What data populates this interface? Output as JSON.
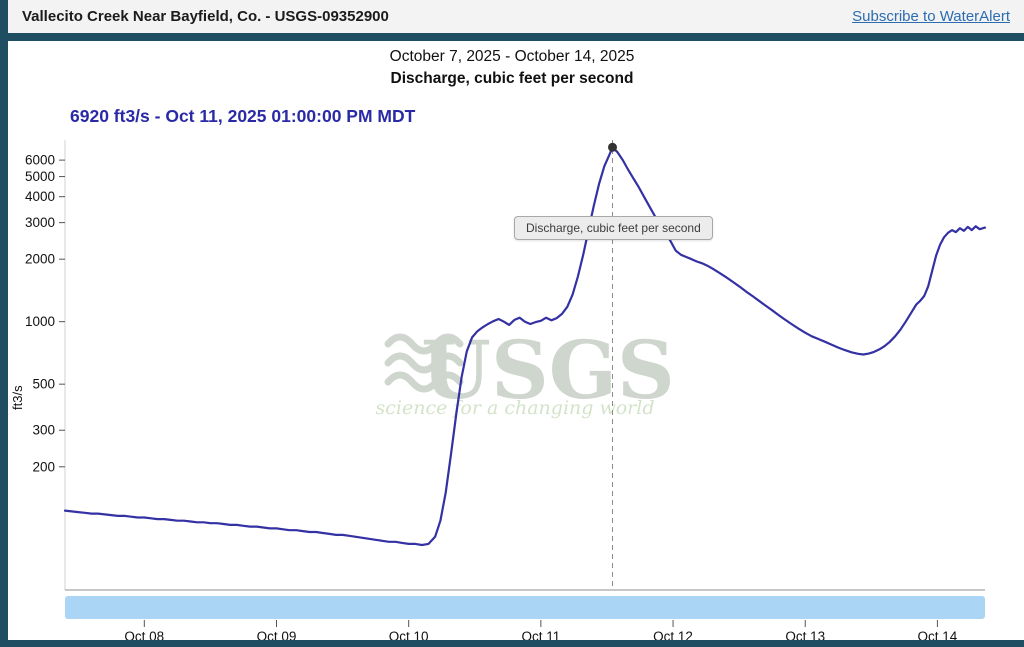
{
  "header": {
    "title": "Vallecito Creek Near Bayfield, Co. - USGS-09352900",
    "subscribe_link": "Subscribe to WaterAlert"
  },
  "chart": {
    "date_range_title": "October 7, 2025 - October 14, 2025",
    "parameter_title": "Discharge, cubic feet per second",
    "current_value_label": "6920 ft3/s - Oct 11, 2025 01:00:00 PM MDT",
    "tooltip": "Discharge, cubic feet per second",
    "watermark": {
      "text": "USGS",
      "tagline": "science for a changing world"
    }
  },
  "colors": {
    "frame": "#1f4e62",
    "header_bg": "#f3f3f3",
    "link": "#2c6cb0",
    "value_label": "#2b2aa6",
    "line": "#3431a4",
    "scrollbar": "#abd5f5",
    "watermark": "#c9d2c8"
  },
  "chart_data": {
    "type": "line",
    "title": "Discharge, cubic feet per second",
    "xlabel": "",
    "ylabel": "ft3/s",
    "y_scale": "log",
    "grid": false,
    "legend_position": "none",
    "y_ticks": [
      200,
      300,
      500,
      1000,
      2000,
      3000,
      4000,
      5000,
      6000
    ],
    "x_ticks": [
      {
        "day": 8,
        "label": "Oct 08"
      },
      {
        "day": 9,
        "label": "Oct 09"
      },
      {
        "day": 10,
        "label": "Oct 10"
      },
      {
        "day": 11,
        "label": "Oct 11"
      },
      {
        "day": 12,
        "label": "Oct 12"
      },
      {
        "day": 13,
        "label": "Oct 13"
      },
      {
        "day": 14,
        "label": "Oct 14"
      }
    ],
    "x_range_days": [
      7.4,
      14.36
    ],
    "y_range": [
      51,
      7500
    ],
    "peak": {
      "x": 11.542,
      "value": 6920,
      "datetime_label": "Oct 11, 2025 01:00:00 PM MDT",
      "marker_color": "#333333"
    },
    "series": [
      {
        "name": "Discharge",
        "color": "#3431a4",
        "x": [
          7.4,
          7.45,
          7.5,
          7.55,
          7.6,
          7.65,
          7.7,
          7.75,
          7.8,
          7.85,
          7.9,
          7.95,
          8.0,
          8.05,
          8.1,
          8.15,
          8.2,
          8.25,
          8.3,
          8.35,
          8.4,
          8.45,
          8.5,
          8.55,
          8.6,
          8.65,
          8.7,
          8.75,
          8.8,
          8.85,
          8.9,
          8.95,
          9.0,
          9.05,
          9.1,
          9.15,
          9.2,
          9.25,
          9.3,
          9.35,
          9.4,
          9.45,
          9.5,
          9.55,
          9.6,
          9.65,
          9.7,
          9.75,
          9.8,
          9.85,
          9.9,
          9.95,
          10.0,
          10.05,
          10.1,
          10.15,
          10.2,
          10.24,
          10.28,
          10.32,
          10.36,
          10.4,
          10.44,
          10.48,
          10.52,
          10.56,
          10.6,
          10.64,
          10.68,
          10.72,
          10.76,
          10.8,
          10.84,
          10.88,
          10.92,
          10.96,
          11.0,
          11.04,
          11.08,
          11.12,
          11.16,
          11.2,
          11.24,
          11.28,
          11.32,
          11.36,
          11.4,
          11.44,
          11.48,
          11.52,
          11.542,
          11.58,
          11.62,
          11.66,
          11.7,
          11.74,
          11.78,
          11.82,
          11.86,
          11.9,
          11.94,
          11.98,
          12.02,
          12.06,
          12.1,
          12.14,
          12.18,
          12.22,
          12.26,
          12.3,
          12.35,
          12.4,
          12.45,
          12.5,
          12.55,
          12.6,
          12.65,
          12.7,
          12.75,
          12.8,
          12.85,
          12.9,
          12.95,
          13.0,
          13.05,
          13.1,
          13.15,
          13.2,
          13.25,
          13.3,
          13.35,
          13.4,
          13.44,
          13.48,
          13.52,
          13.56,
          13.6,
          13.64,
          13.68,
          13.72,
          13.76,
          13.8,
          13.84,
          13.87,
          13.9,
          13.93,
          13.96,
          13.99,
          14.02,
          14.05,
          14.08,
          14.11,
          14.14,
          14.17,
          14.2,
          14.23,
          14.26,
          14.29,
          14.32,
          14.36
        ],
        "values": [
          123,
          122,
          121,
          120,
          119,
          119,
          118,
          117,
          116,
          116,
          115,
          114,
          114,
          113,
          112,
          112,
          111,
          110,
          110,
          109,
          108,
          108,
          107,
          107,
          106,
          105,
          105,
          104,
          103,
          103,
          102,
          101,
          101,
          100,
          99,
          99,
          98,
          97,
          97,
          96,
          95,
          94,
          94,
          93,
          92,
          91,
          90,
          89,
          88,
          87,
          87,
          86,
          85,
          85,
          84,
          85,
          92,
          110,
          150,
          230,
          360,
          540,
          720,
          840,
          900,
          940,
          975,
          1005,
          1030,
          1000,
          965,
          1020,
          1045,
          1000,
          975,
          995,
          1010,
          1045,
          1015,
          1040,
          1090,
          1180,
          1350,
          1650,
          2100,
          2750,
          3600,
          4600,
          5600,
          6400,
          6920,
          6550,
          6000,
          5400,
          4900,
          4450,
          4000,
          3600,
          3250,
          2950,
          2700,
          2450,
          2200,
          2100,
          2050,
          2000,
          1950,
          1910,
          1860,
          1800,
          1720,
          1640,
          1560,
          1480,
          1400,
          1330,
          1260,
          1195,
          1135,
          1075,
          1020,
          970,
          925,
          885,
          850,
          825,
          800,
          775,
          750,
          730,
          712,
          700,
          695,
          702,
          715,
          735,
          762,
          800,
          850,
          915,
          1000,
          1100,
          1210,
          1260,
          1330,
          1480,
          1750,
          2080,
          2350,
          2550,
          2680,
          2760,
          2700,
          2820,
          2740,
          2860,
          2760,
          2880,
          2790,
          2840
        ]
      }
    ]
  }
}
